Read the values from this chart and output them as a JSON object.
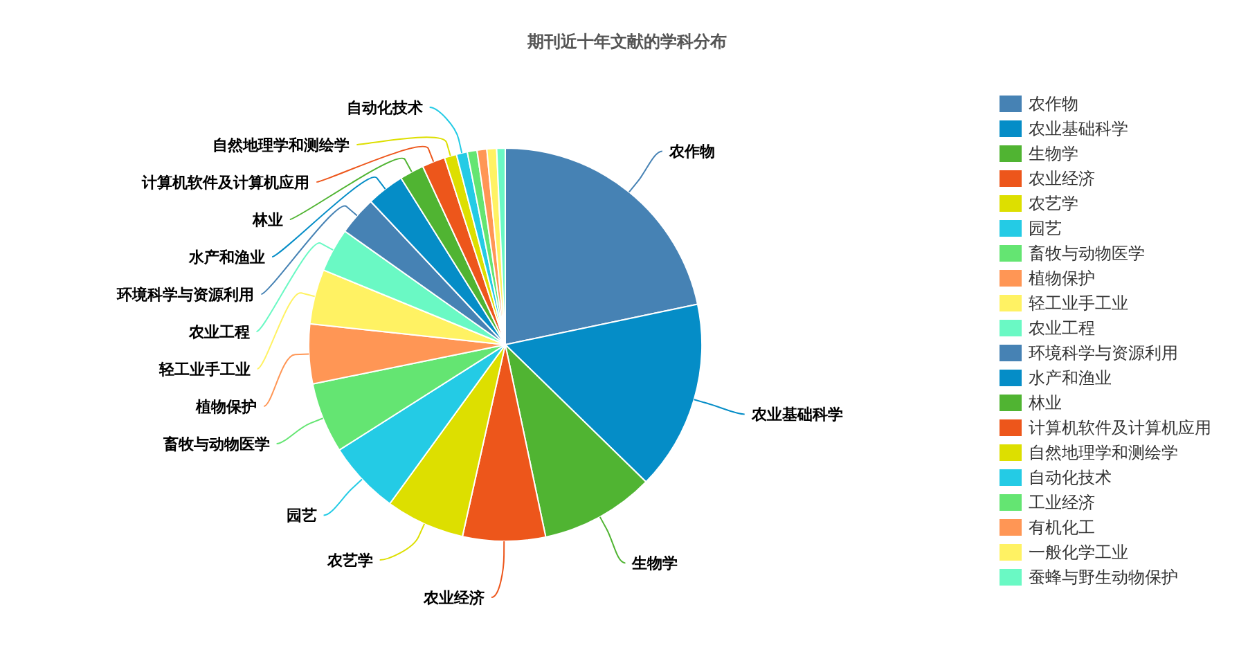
{
  "chart_data": {
    "type": "pie",
    "title": "期刊近十年文献的学科分布",
    "categories": [
      "农作物",
      "农业基础科学",
      "生物学",
      "农业经济",
      "农艺学",
      "园艺",
      "畜牧与动物医学",
      "植物保护",
      "轻工业手工业",
      "农业工程",
      "环境科学与资源利用",
      "水产和渔业",
      "林业",
      "计算机软件及计算机应用",
      "自然地理学和测绘学",
      "自动化技术",
      "工业经济",
      "有机化工",
      "一般化学工业",
      "蚕蜂与野生动物保护"
    ],
    "values": [
      21.7,
      15.6,
      9.4,
      6.8,
      6.5,
      6.0,
      5.8,
      4.9,
      4.5,
      3.6,
      3.2,
      3.1,
      2.0,
      1.9,
      1.0,
      0.9,
      0.8,
      0.8,
      0.8,
      0.7
    ],
    "colors": [
      "#4682b4",
      "#058dc7",
      "#50b432",
      "#ed561b",
      "#dddf00",
      "#24cbe5",
      "#64e572",
      "#ff9655",
      "#fff263",
      "#6af9c4",
      "#4682b4",
      "#058dc7",
      "#50b432",
      "#ed561b",
      "#dddf00",
      "#24cbe5",
      "#64e572",
      "#ff9655",
      "#fff263",
      "#6af9c4"
    ],
    "legend": "right"
  }
}
